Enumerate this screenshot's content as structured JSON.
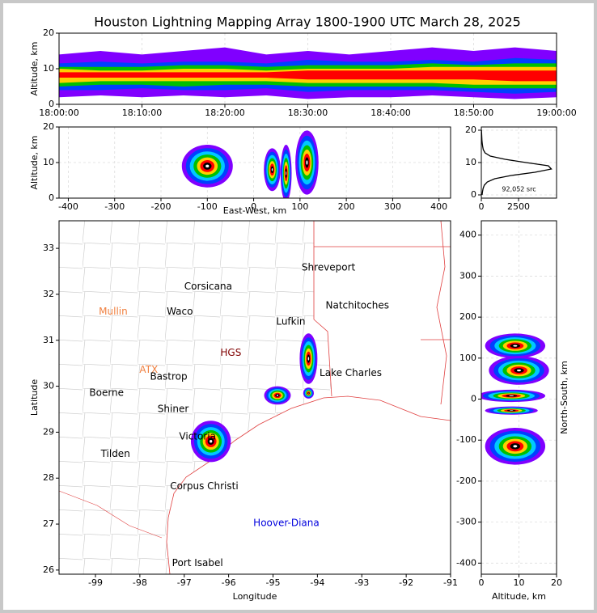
{
  "title": "Houston Lightning Mapping Array 1800-1900 UTC March 28, 2025",
  "chart_data": [
    {
      "type": "band",
      "ylabel": "Altitude, km",
      "xlim": [
        0,
        60
      ],
      "ylim": [
        0,
        20
      ],
      "xticks": [
        {
          "value": 0,
          "label": "18:00:00"
        },
        {
          "value": 10,
          "label": "18:10:00"
        },
        {
          "value": 20,
          "label": "18:20:00"
        },
        {
          "value": 30,
          "label": "18:30:00"
        },
        {
          "value": 40,
          "label": "18:40:00"
        },
        {
          "value": 50,
          "label": "18:50:00"
        },
        {
          "value": 60,
          "label": "19:00:00"
        }
      ],
      "yticks": [
        0,
        10,
        20
      ],
      "grid": true,
      "x": [
        0,
        5,
        10,
        15,
        20,
        25,
        30,
        35,
        40,
        45,
        50,
        55,
        60
      ],
      "layers": [
        {
          "color": "#8000ff",
          "low": [
            2,
            2.5,
            2,
            2.5,
            2,
            2.5,
            1.5,
            2,
            2,
            2.5,
            2,
            1.5,
            2
          ],
          "high": [
            14,
            15,
            14,
            15,
            16,
            14,
            15,
            14,
            15,
            16,
            15,
            16,
            15
          ]
        },
        {
          "color": "#0040ff",
          "low": [
            4,
            4,
            4.5,
            4,
            4,
            4.5,
            3.5,
            4,
            4,
            4,
            3.5,
            3,
            3.5
          ],
          "high": [
            11.5,
            12,
            11.5,
            12,
            12,
            11.5,
            12.5,
            12,
            12,
            12.5,
            12,
            13,
            12.5
          ]
        },
        {
          "color": "#00c000",
          "low": [
            5,
            5.5,
            5.5,
            5,
            5.5,
            5.5,
            5,
            5,
            5,
            5,
            4.5,
            4.5,
            4.5
          ],
          "high": [
            10.5,
            10.5,
            10.5,
            11,
            11,
            10.5,
            11,
            11,
            11,
            11.5,
            11,
            11.5,
            11.5
          ]
        },
        {
          "color": "#ffd000",
          "low": [
            6,
            6.5,
            6.5,
            6.5,
            6.5,
            6.5,
            6,
            6,
            6,
            6,
            5.5,
            5.5,
            5.5
          ],
          "high": [
            10,
            9.5,
            9.5,
            10,
            10,
            9.5,
            10,
            10,
            10,
            10.5,
            10.5,
            10.5,
            10.5
          ]
        },
        {
          "color": "#ff0000",
          "low": [
            7.5,
            7.5,
            7.5,
            7.5,
            7.5,
            7.5,
            7,
            7,
            7,
            7,
            7,
            6.5,
            6.5
          ],
          "high": [
            9,
            9,
            9,
            9,
            9,
            9,
            9.5,
            9.5,
            9.5,
            9.5,
            9.5,
            9.5,
            9.5
          ]
        }
      ]
    },
    {
      "type": "density",
      "xlabel": "East-West, km",
      "ylabel": "Altitude, km",
      "xlim": [
        -420,
        425
      ],
      "ylim": [
        0,
        20
      ],
      "xticks": [
        -400,
        -300,
        -200,
        -100,
        0,
        100,
        200,
        300,
        400
      ],
      "yticks": [
        0,
        10,
        20
      ],
      "grid": true,
      "palette": [
        "#8000ff",
        "#0040ff",
        "#00c8ff",
        "#00c000",
        "#ffd000",
        "#ff0000",
        "#000000",
        "#ffffff"
      ],
      "clusters": [
        {
          "x": -100,
          "y": 9,
          "rx": 55,
          "ry": 6
        },
        {
          "x": 40,
          "y": 8,
          "rx": 18,
          "ry": 6
        },
        {
          "x": 70,
          "y": 7,
          "rx": 12,
          "ry": 8
        },
        {
          "x": 115,
          "y": 10,
          "rx": 25,
          "ry": 9
        }
      ]
    },
    {
      "type": "line",
      "annotation": "92,052 src",
      "xlim": [
        0,
        5050
      ],
      "ylim": [
        -1,
        21
      ],
      "xticks": [
        0,
        2500
      ],
      "yticks": [
        0,
        10,
        20
      ],
      "grid": true,
      "color": "#000000",
      "y": [
        0,
        1,
        2,
        3,
        4,
        5,
        6,
        7,
        8,
        9,
        10,
        11,
        12,
        13,
        14,
        15,
        16,
        17,
        18,
        19,
        20
      ],
      "values": [
        50,
        80,
        120,
        200,
        400,
        900,
        2000,
        3600,
        4700,
        4500,
        3000,
        1600,
        600,
        250,
        130,
        90,
        60,
        40,
        30,
        20,
        10
      ]
    },
    {
      "type": "density",
      "xlabel": "Longitude",
      "ylabel": "Latitude",
      "xlim": [
        -99.82,
        -91
      ],
      "ylim": [
        25.91,
        33.6
      ],
      "xticks": [
        -99,
        -98,
        -97,
        -96,
        -95,
        -94,
        -93,
        -92,
        -91
      ],
      "yticks": [
        26,
        27,
        28,
        29,
        30,
        31,
        32,
        33
      ],
      "grid": false,
      "palette": [
        "#8000ff",
        "#0040ff",
        "#00c8ff",
        "#00c000",
        "#ffd000",
        "#ff0000",
        "#000000",
        "#ffffff"
      ],
      "clusters": [
        {
          "x": -96.4,
          "y": 28.8,
          "rx": 0.45,
          "ry": 0.45
        },
        {
          "x": -94.2,
          "y": 30.6,
          "rx": 0.2,
          "ry": 0.55
        },
        {
          "x": -94.9,
          "y": 29.8,
          "rx": 0.3,
          "ry": 0.2
        },
        {
          "x": -94.2,
          "y": 29.85,
          "rx": 0.12,
          "ry": 0.12
        }
      ],
      "labels": [
        {
          "text": "Shreveport",
          "x": -93.75,
          "y": 32.58,
          "color": "#000000"
        },
        {
          "text": "Corsicana",
          "x": -96.46,
          "y": 32.17,
          "color": "#000000"
        },
        {
          "text": "Mullin",
          "x": -98.6,
          "y": 31.62,
          "color": "#f08040"
        },
        {
          "text": "Waco",
          "x": -97.1,
          "y": 31.62,
          "color": "#000000"
        },
        {
          "text": "Natchitoches",
          "x": -93.1,
          "y": 31.75,
          "color": "#000000"
        },
        {
          "text": "Lufkin",
          "x": -94.6,
          "y": 31.4,
          "color": "#000000"
        },
        {
          "text": "HGS",
          "x": -95.95,
          "y": 30.72,
          "color": "#800000"
        },
        {
          "text": "ATX",
          "x": -97.8,
          "y": 30.35,
          "color": "#f08040"
        },
        {
          "text": "Bastrop",
          "x": -97.35,
          "y": 30.2,
          "color": "#000000"
        },
        {
          "text": "Lake Charles",
          "x": -93.25,
          "y": 30.28,
          "color": "#000000"
        },
        {
          "text": "Boerne",
          "x": -98.75,
          "y": 29.85,
          "color": "#000000"
        },
        {
          "text": "Shiner",
          "x": -97.25,
          "y": 29.5,
          "color": "#000000"
        },
        {
          "text": "Victoria",
          "x": -96.7,
          "y": 28.9,
          "color": "#000000"
        },
        {
          "text": "Tilden",
          "x": -98.55,
          "y": 28.52,
          "color": "#000000"
        },
        {
          "text": "Corpus Christi",
          "x": -96.55,
          "y": 27.82,
          "color": "#000000"
        },
        {
          "text": "Hoover-Diana",
          "x": -94.7,
          "y": 27.02,
          "color": "#0000dd"
        },
        {
          "text": "Port Isabel",
          "x": -96.7,
          "y": 26.15,
          "color": "#000000"
        }
      ]
    },
    {
      "type": "density",
      "xlabel": "Altitude, km",
      "ylabel": "North-South, km",
      "xlim": [
        0,
        20
      ],
      "ylim": [
        -427,
        435
      ],
      "xticks": [
        0,
        10,
        20
      ],
      "yticks": [
        -400,
        -300,
        -200,
        -100,
        0,
        100,
        200,
        300,
        400
      ],
      "grid": true,
      "palette": [
        "#8000ff",
        "#0040ff",
        "#00c8ff",
        "#00c000",
        "#ffd000",
        "#ff0000",
        "#000000",
        "#ffffff"
      ],
      "clusters": [
        {
          "x": 9,
          "y": 130,
          "rx": 8,
          "ry": 30
        },
        {
          "x": 10,
          "y": 70,
          "rx": 8,
          "ry": 35
        },
        {
          "x": 8,
          "y": 8,
          "rx": 9,
          "ry": 15
        },
        {
          "x": 8,
          "y": -28,
          "rx": 7,
          "ry": 10
        },
        {
          "x": 9,
          "y": -115,
          "rx": 8,
          "ry": 45
        }
      ]
    }
  ]
}
